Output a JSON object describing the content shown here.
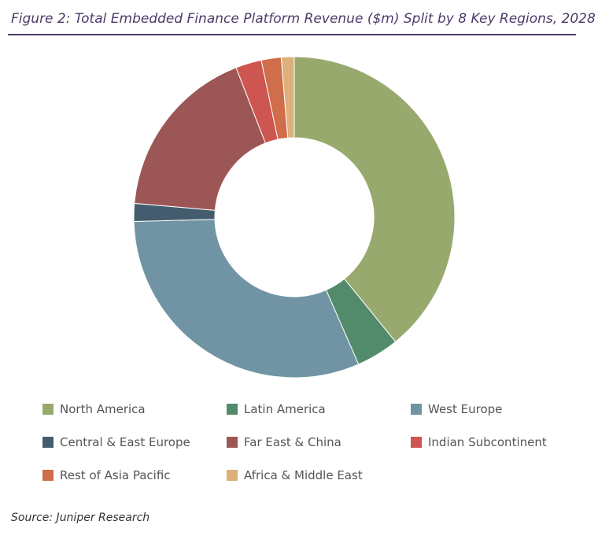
{
  "title": "Figure 2: Total Embedded Finance Platform Revenue ($m) Split by 8 Key Regions, 2028",
  "source": "Source: Juniper Research",
  "chart_data": {
    "type": "pie",
    "variant": "donut",
    "title": "Figure 2: Total Embedded Finance Platform Revenue ($m) Split by 8 Key Regions, 2028",
    "unit": "share (%)",
    "legend_position": "bottom",
    "categories": [
      "North America",
      "Latin America",
      "West Europe",
      "Central & East Europe",
      "Far East & China",
      "Indian Subcontinent",
      "Rest of Asia Pacific",
      "Africa & Middle East"
    ],
    "values": [
      39.1,
      4.3,
      31.1,
      1.8,
      17.7,
      2.6,
      2.0,
      1.3
    ],
    "colors": [
      "#98a96e",
      "#528b6b",
      "#7094a3",
      "#445d6e",
      "#9d5656",
      "#cd5650",
      "#d06d4a",
      "#ddb07a"
    ]
  }
}
